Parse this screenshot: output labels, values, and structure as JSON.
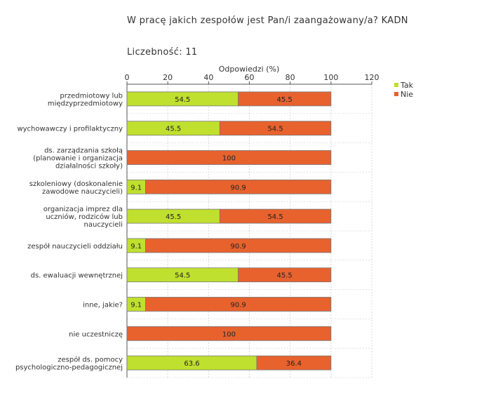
{
  "header": {
    "title": "W pracę jakich zespołów jest Pan/i zaangażowany/a? KADN",
    "count_label": "Liczebność:",
    "count_value": "11"
  },
  "chart_data": {
    "type": "bar",
    "orientation": "horizontal",
    "stacked": true,
    "xlabel": "Odpowiedzi (%)",
    "xlim": [
      0,
      120
    ],
    "xticks": [
      0,
      20,
      40,
      60,
      80,
      100,
      120
    ],
    "grid": true,
    "legend_position": "top-right",
    "categories": [
      [
        "przedmiotowy lub",
        "międzyprzedmiotowy"
      ],
      [
        "wychowawczy i profilaktyczny"
      ],
      [
        "ds. zarządzania szkołą",
        "(planowanie i organizacja",
        "działalności szkoły)"
      ],
      [
        "szkoleniowy (doskonalenie",
        "zawodowe nauczycieli)"
      ],
      [
        "organizacja imprez dla",
        "uczniów, rodziców lub",
        "nauczycieli"
      ],
      [
        "zespół nauczycieli oddziału"
      ],
      [
        "ds. ewaluacji wewnętrznej"
      ],
      [
        "inne, jakie?"
      ],
      [
        "nie uczestniczę"
      ],
      [
        "zespół ds. pomocy",
        "psychologiczno-pedagogicznej"
      ]
    ],
    "series": [
      {
        "name": "Tak",
        "color": "#bfe02f",
        "values": [
          54.5,
          45.5,
          0,
          9.1,
          45.5,
          9.1,
          54.5,
          9.1,
          0,
          63.6
        ]
      },
      {
        "name": "Nie",
        "color": "#e8622e",
        "values": [
          45.5,
          54.5,
          100,
          90.9,
          54.5,
          90.9,
          45.5,
          90.9,
          100,
          36.4
        ]
      }
    ]
  }
}
